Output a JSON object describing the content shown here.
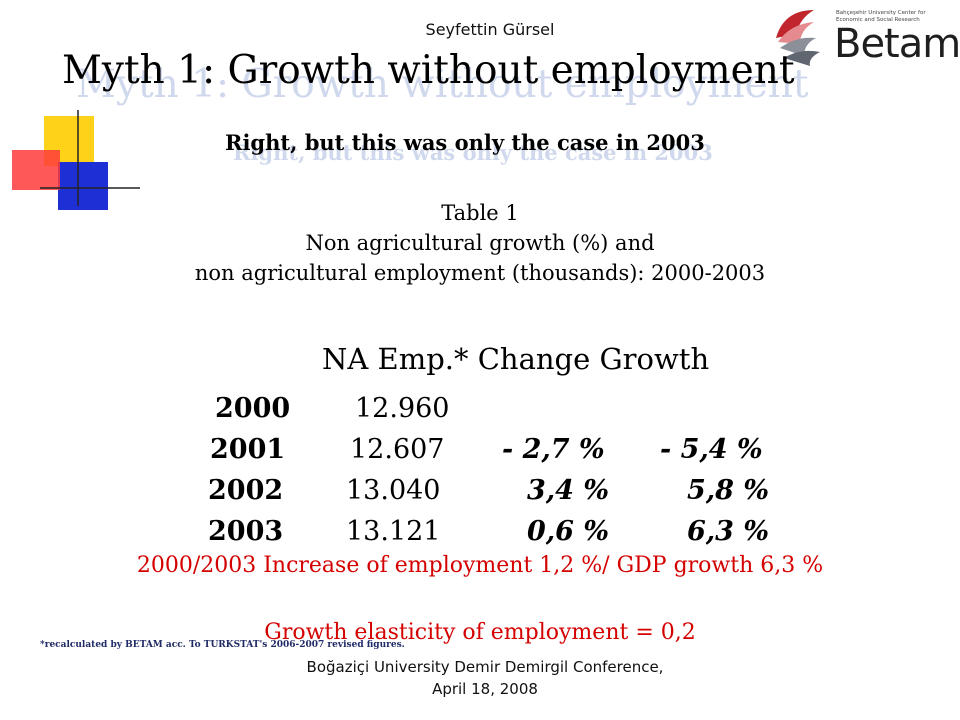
{
  "header": {
    "author": "Seyfettin Gürsel",
    "logo_text": "Betam",
    "logo_subtext": "Bahçeşehir University Center for Economic and Social Research"
  },
  "slide": {
    "title": "Myth 1: Growth without employment",
    "subtitle": "Right, but this was only the case in 2003"
  },
  "table": {
    "caption_line1": "Table 1",
    "caption_line2": "Non agricultural growth (%) and",
    "caption_line3": "non agricultural employment  (thousands): 2000-2003",
    "column_header": "NA Emp.* Change  Growth",
    "rows": [
      {
        "year": "2000",
        "emp": "12.960",
        "change": "",
        "growth": ""
      },
      {
        "year": "2001",
        "emp": "12.607",
        "change": "- 2,7 %",
        "growth": "- 5,4 %"
      },
      {
        "year": "2002",
        "emp": "13.040",
        "change": "3,4 %",
        "growth": "5,8 %"
      },
      {
        "year": "2003",
        "emp": "13.121",
        "change": "0,6 %",
        "growth": "6,3 %"
      }
    ]
  },
  "summary": {
    "increase_text": "2000/2003 Increase of employment 1,2 %/ GDP growth 6,3 %",
    "elasticity_text": "Growth elasticity  of employment = 0,2"
  },
  "footer": {
    "footnote": "*recalculated by BETAM acc. To TURKSTAT's 2006-2007 revised figures.",
    "conference_line1": "Boğaziçi University Demir Demirgil Conference,",
    "conference_line2": "April 18, 2008"
  },
  "colors": {
    "accent_red": "#d40000",
    "shadow_blue": "#cfd8ec",
    "logo_red": "#c0262c"
  }
}
